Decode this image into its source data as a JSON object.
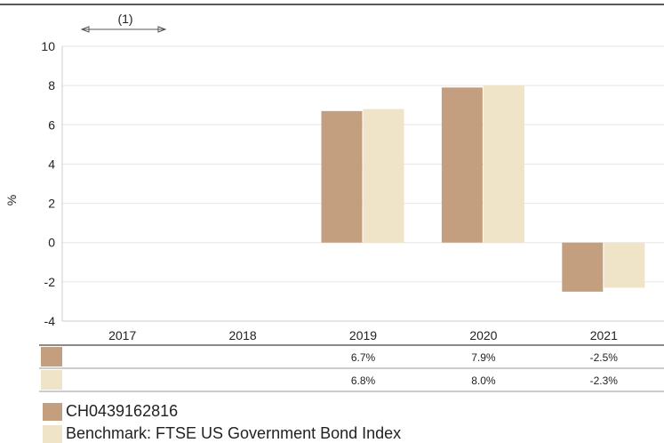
{
  "colors": {
    "fund": "#c49f7f",
    "benchmark": "#efe3c8"
  },
  "chart_data": {
    "type": "bar",
    "title": "",
    "xlabel": "",
    "ylabel": "%",
    "ylim": [
      -4,
      10
    ],
    "yticks": [
      -4,
      -2,
      0,
      2,
      4,
      6,
      8,
      10
    ],
    "categories": [
      "2017",
      "2018",
      "2019",
      "2020",
      "2021"
    ],
    "series": [
      {
        "name": "CH0439162816",
        "values": [
          null,
          null,
          6.7,
          7.9,
          -2.5
        ],
        "labels": [
          "",
          "",
          "6.7%",
          "7.9%",
          "-2.5%"
        ]
      },
      {
        "name": "Benchmark: FTSE US Government Bond Index",
        "values": [
          null,
          null,
          6.8,
          8.0,
          -2.3
        ],
        "labels": [
          "",
          "",
          "6.8%",
          "8.0%",
          "-2.3%"
        ]
      }
    ],
    "annotation": "(1)",
    "grid": true,
    "legend": "bottom-left"
  }
}
